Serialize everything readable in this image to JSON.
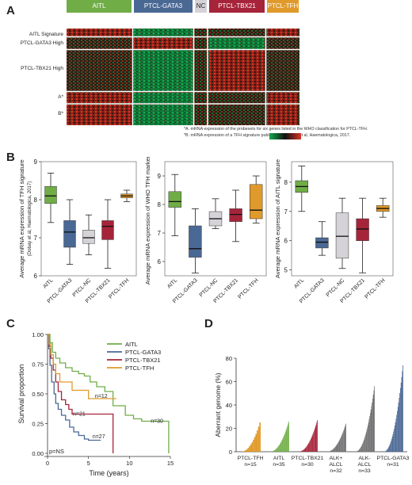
{
  "panels": {
    "a": "A",
    "b": "B",
    "c": "C",
    "d": "D"
  },
  "colors": {
    "aitl": "#70ad47",
    "gata3": "#4a6894",
    "nc": "#d5d3d7",
    "tbx21": "#a6243a",
    "tfh": "#e09a2b",
    "ang_alk_neg": "#6e6e70",
    "ang_alk_pos": "#6e6e70",
    "heat_red": "#d93526",
    "heat_green": "#18a84b"
  },
  "heatmap": {
    "groups": [
      "AITL",
      "PTCL-GATA3",
      "NC",
      "PTCL-TBX21",
      "PTCL-TFH"
    ],
    "row_labels": [
      "AITL Signature",
      "PTCL-GATA3 High",
      "PTCL-TBX21 High",
      "A*",
      "B*"
    ],
    "footnote_a": "*A. mRNA expression of the probesets for six genes listed in the WHO classification for PTCL-TFH.",
    "footnote_b": "*B. mRNA expression of a TFH signature published by Dobay et al, Haematologica, 2017."
  },
  "chart_data": [
    {
      "type": "box",
      "id": "b1",
      "ylabel": "Average mRNA expression of TFH signature",
      "ylabel_note": "(Dobay et al, Haematologica, 2017)",
      "ylim": [
        6,
        9
      ],
      "yticks": [
        6,
        7,
        8,
        9
      ],
      "categories": [
        "AITL",
        "PTCL-GATA3",
        "PTCL-NC",
        "PTCL-TBX21",
        "PTCL-TFH"
      ],
      "boxes": [
        {
          "min": 7.4,
          "q1": 7.9,
          "median": 8.1,
          "q3": 8.35,
          "max": 8.7
        },
        {
          "min": 6.3,
          "q1": 6.75,
          "median": 7.15,
          "q3": 7.45,
          "max": 8.0
        },
        {
          "min": 6.55,
          "q1": 6.85,
          "median": 7.0,
          "q3": 7.2,
          "max": 7.6
        },
        {
          "min": 6.2,
          "q1": 6.95,
          "median": 7.3,
          "q3": 7.45,
          "max": 8.0
        },
        {
          "min": 7.95,
          "q1": 8.05,
          "median": 8.1,
          "q3": 8.15,
          "max": 8.25
        }
      ]
    },
    {
      "type": "box",
      "id": "b2",
      "ylabel": "Average mRNA expression of WHO TFH markers",
      "ylim": [
        5.5,
        9.5
      ],
      "yticks": [
        6,
        7,
        8,
        9
      ],
      "categories": [
        "AITL",
        "PTCL-GATA3",
        "PTCL-NC",
        "PTCL-TBX21",
        "PTCL-TFH"
      ],
      "boxes": [
        {
          "min": 6.9,
          "q1": 7.9,
          "median": 8.1,
          "q3": 8.45,
          "max": 9.05
        },
        {
          "min": 5.6,
          "q1": 6.15,
          "median": 6.45,
          "q3": 7.25,
          "max": 7.85
        },
        {
          "min": 7.15,
          "q1": 7.25,
          "median": 7.5,
          "q3": 7.75,
          "max": 8.2
        },
        {
          "min": 6.7,
          "q1": 7.4,
          "median": 7.65,
          "q3": 7.85,
          "max": 8.5
        },
        {
          "min": 7.35,
          "q1": 7.5,
          "median": 7.8,
          "q3": 8.7,
          "max": 9.0
        }
      ]
    },
    {
      "type": "box",
      "id": "b3",
      "ylabel": "Average mRNA expression of AITL signature",
      "ylim": [
        4.8,
        8.7
      ],
      "yticks": [
        5,
        6,
        7,
        8
      ],
      "categories": [
        "AITL",
        "PTCL-GATA3",
        "PTCL-NC",
        "PTCL-TBX21",
        "PTCL-TFH"
      ],
      "boxes": [
        {
          "min": 7.0,
          "q1": 7.65,
          "median": 7.85,
          "q3": 8.05,
          "max": 8.55
        },
        {
          "min": 5.5,
          "q1": 5.75,
          "median": 5.95,
          "q3": 6.1,
          "max": 6.65
        },
        {
          "min": 5.05,
          "q1": 5.4,
          "median": 6.15,
          "q3": 6.95,
          "max": 7.45
        },
        {
          "min": 4.9,
          "q1": 6.0,
          "median": 6.4,
          "q3": 6.75,
          "max": 7.45
        },
        {
          "min": 6.8,
          "q1": 7.0,
          "median": 7.1,
          "q3": 7.2,
          "max": 7.45
        }
      ]
    },
    {
      "type": "line",
      "id": "c",
      "xlabel": "Time (years)",
      "ylabel": "Survival proportion",
      "xlim": [
        0,
        15
      ],
      "ylim": [
        0,
        1.0
      ],
      "xticks": [
        0,
        5,
        10,
        15
      ],
      "yticks": [
        0,
        0.25,
        0.5,
        0.75,
        1.0
      ],
      "legend": [
        "AITL",
        "PTCL-GATA3",
        "PTCL-TBX21",
        "PTCL-TFH"
      ],
      "annotation": "p=NS",
      "series": [
        {
          "name": "AITL",
          "n_label": "n=30",
          "label_at": [
            12.6,
            0.27
          ],
          "x": [
            0,
            0.3,
            0.6,
            1.0,
            1.5,
            2.2,
            3.0,
            3.8,
            4.5,
            5.2,
            6.0,
            7.0,
            8.0,
            9.5,
            10.5,
            11.5,
            12.5,
            13.5,
            14.5,
            14.8
          ],
          "y": [
            1.0,
            0.93,
            0.85,
            0.8,
            0.76,
            0.72,
            0.69,
            0.67,
            0.65,
            0.6,
            0.56,
            0.52,
            0.4,
            0.32,
            0.29,
            0.27,
            0.27,
            0.27,
            0.27,
            0.0
          ]
        },
        {
          "name": "PTCL-GATA3",
          "n_label": "n=27",
          "label_at": [
            5.5,
            0.14
          ],
          "x": [
            0,
            0.15,
            0.3,
            0.5,
            0.8,
            1.0,
            1.3,
            1.7,
            2.2,
            2.7,
            3.2,
            3.8,
            4.5,
            5.0,
            6.5
          ],
          "y": [
            1.0,
            0.88,
            0.74,
            0.6,
            0.5,
            0.42,
            0.37,
            0.32,
            0.28,
            0.22,
            0.18,
            0.15,
            0.12,
            0.11,
            0.11
          ]
        },
        {
          "name": "PTCL-TBX21",
          "n_label": "n=21",
          "label_at": [
            3.1,
            0.33
          ],
          "x": [
            0,
            0.2,
            0.4,
            0.7,
            1.0,
            1.3,
            1.7,
            2.2,
            2.6,
            3.0,
            4.0,
            5.0,
            6.0,
            7.0,
            8.0
          ],
          "y": [
            1.0,
            0.9,
            0.8,
            0.7,
            0.6,
            0.52,
            0.45,
            0.41,
            0.37,
            0.33,
            0.33,
            0.33,
            0.33,
            0.33,
            0.0
          ]
        },
        {
          "name": "PTCL-TFH",
          "n_label": "n=12",
          "label_at": [
            5.8,
            0.48
          ],
          "x": [
            0,
            0.2,
            0.4,
            0.7,
            1.0,
            1.5,
            2.2,
            3.0,
            4.0,
            5.0,
            6.0,
            7.0,
            7.6,
            8.4
          ],
          "y": [
            1.0,
            0.92,
            0.83,
            0.75,
            0.67,
            0.6,
            0.6,
            0.53,
            0.53,
            0.46,
            0.46,
            0.46,
            0.46,
            0.46
          ]
        }
      ]
    },
    {
      "type": "bar",
      "id": "d",
      "ylabel": "Aberrant genome (%)",
      "ylim": [
        0,
        80
      ],
      "yticks": [
        0,
        20,
        40,
        60,
        80
      ],
      "groups": [
        {
          "label": "PTCL-TFH",
          "n_label": "n=15",
          "n": 15,
          "max": 25
        },
        {
          "label": "AITL",
          "n_label": "n=35",
          "n": 35,
          "max": 26
        },
        {
          "label": "PTCL-TBX21",
          "n_label": "n=30",
          "n": 30,
          "max": 27
        },
        {
          "label": "ALK+ ALCL",
          "n_label": "n=32",
          "n": 32,
          "max": 24
        },
        {
          "label": "ALK- ALCL",
          "n_label": "n=33",
          "n": 33,
          "max": 56
        },
        {
          "label": "PTCL-GATA3",
          "n_label": "n=31",
          "n": 31,
          "max": 74
        }
      ]
    }
  ]
}
